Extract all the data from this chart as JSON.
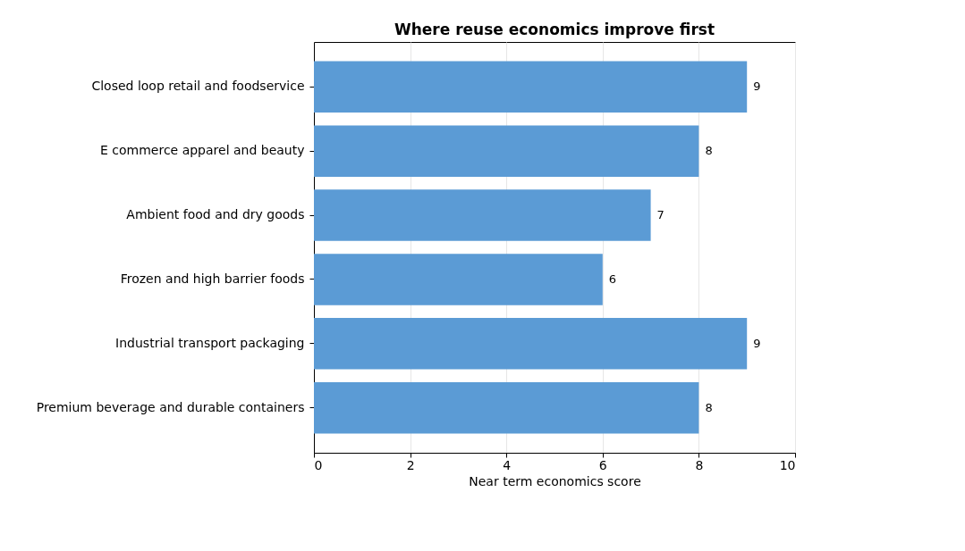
{
  "chart_data": {
    "type": "bar",
    "orientation": "horizontal",
    "title": "Where reuse economics improve first",
    "xlabel": "Near term economics score",
    "categories": [
      "Closed loop retail and foodservice",
      "E commerce apparel and beauty",
      "Ambient food and dry goods",
      "Frozen and high barrier foods",
      "Industrial transport packaging",
      "Premium beverage and durable containers"
    ],
    "values": [
      9,
      8,
      7,
      6,
      9,
      8
    ],
    "color": "#5b9bd5",
    "xlim": [
      0,
      10
    ],
    "xticks": [
      0,
      2,
      4,
      6,
      8,
      10
    ],
    "grid": "x",
    "data_labels": true
  }
}
